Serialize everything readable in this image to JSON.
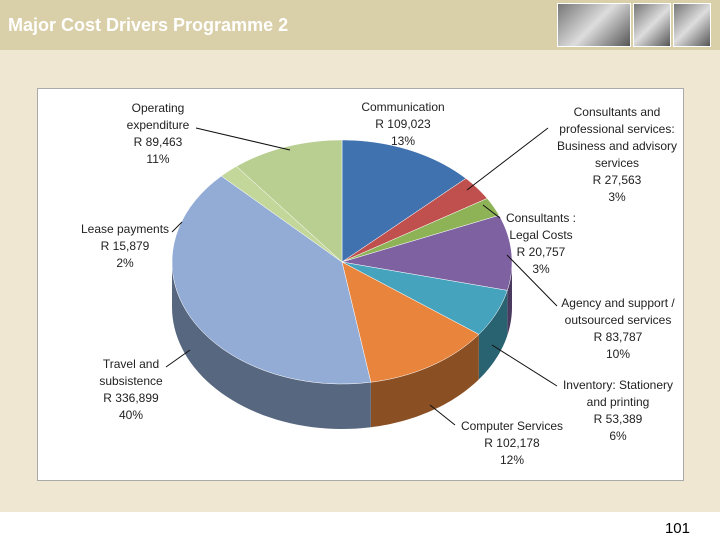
{
  "title": "Major Cost Drivers Programme 2",
  "page_number": "101",
  "chart_data": {
    "type": "pie",
    "categories": [
      "Communication",
      "Consultants and professional services: Business and advisory services",
      "Consultants : Legal Costs",
      "Agency and support / outsourced services",
      "Inventory: Stationery and printing",
      "Computer Services",
      "Travel and subsistence",
      "Lease payments",
      "Operating expenditure"
    ],
    "values": [
      109023,
      27563,
      20757,
      83787,
      53389,
      102178,
      336899,
      15879,
      89463
    ],
    "value_labels": [
      "R 109,023",
      "R 27,563",
      "R 20,757",
      "R 83,787",
      "R 53,389",
      "R 102,178",
      "R 336,899",
      "R 15,879",
      "R 89,463"
    ],
    "percentages": [
      13,
      3,
      3,
      10,
      6,
      12,
      40,
      2,
      11
    ],
    "percentage_labels": [
      "13%",
      "3%",
      "3%",
      "10%",
      "6%",
      "12%",
      "40%",
      "2%",
      "11%"
    ],
    "colors": [
      "#4172b0",
      "#c0504d",
      "#8db356",
      "#7d61a0",
      "#45a3bd",
      "#e8843c",
      "#93acd6",
      "#c4d79b",
      "#b9cf92"
    ]
  }
}
